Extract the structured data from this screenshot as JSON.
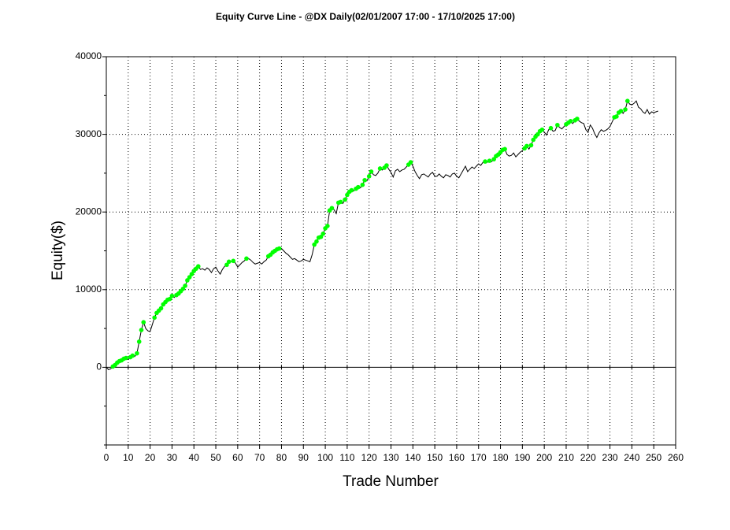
{
  "chart_data": {
    "type": "line",
    "title": "Equity Curve Line - @DX Daily(02/01/2007 17:00 - 17/10/2025 17:00)",
    "x_label": "Trade Number",
    "y_label": "Equity($)",
    "xlim": [
      0,
      260
    ],
    "xticks": [
      0,
      10,
      20,
      30,
      40,
      50,
      60,
      70,
      80,
      90,
      100,
      110,
      120,
      130,
      140,
      150,
      160,
      170,
      180,
      190,
      200,
      210,
      220,
      230,
      240,
      250,
      260
    ],
    "ylim": [
      -10000,
      40000
    ],
    "yticks": [
      0,
      10000,
      20000,
      30000,
      40000
    ],
    "yminor_ticks": [
      -10000,
      -5000,
      5000,
      15000,
      25000,
      35000
    ],
    "grid": true,
    "line_color": "#000000",
    "marker_color": "#00ff00",
    "series": [
      {
        "name": "Equity",
        "x": [
          0,
          1,
          2,
          3,
          4,
          5,
          6,
          7,
          8,
          9,
          10,
          11,
          12,
          13,
          14,
          15,
          16,
          17,
          18,
          19,
          20,
          21,
          22,
          23,
          24,
          25,
          26,
          27,
          28,
          29,
          30,
          31,
          32,
          33,
          34,
          35,
          36,
          37,
          38,
          39,
          40,
          41,
          42,
          43,
          44,
          45,
          46,
          47,
          48,
          49,
          50,
          51,
          52,
          53,
          54,
          55,
          56,
          57,
          58,
          59,
          60,
          61,
          62,
          63,
          64,
          65,
          66,
          67,
          68,
          69,
          70,
          71,
          72,
          73,
          74,
          75,
          76,
          77,
          78,
          79,
          80,
          81,
          82,
          83,
          84,
          85,
          86,
          87,
          88,
          89,
          90,
          91,
          92,
          93,
          94,
          95,
          96,
          97,
          98,
          99,
          100,
          101,
          102,
          103,
          104,
          105,
          106,
          107,
          108,
          109,
          110,
          111,
          112,
          113,
          114,
          115,
          116,
          117,
          118,
          119,
          120,
          121,
          122,
          123,
          124,
          125,
          126,
          127,
          128,
          129,
          130,
          131,
          132,
          133,
          134,
          135,
          136,
          137,
          138,
          139,
          140,
          141,
          142,
          143,
          144,
          145,
          146,
          147,
          148,
          149,
          150,
          151,
          152,
          153,
          154,
          155,
          156,
          157,
          158,
          159,
          160,
          161,
          162,
          163,
          164,
          165,
          166,
          167,
          168,
          169,
          170,
          171,
          172,
          173,
          174,
          175,
          176,
          177,
          178,
          179,
          180,
          181,
          182,
          183,
          184,
          185,
          186,
          187,
          188,
          189,
          190,
          191,
          192,
          193,
          194,
          195,
          196,
          197,
          198,
          199,
          200,
          201,
          202,
          203,
          204,
          205,
          206,
          207,
          208,
          209,
          210,
          211,
          212,
          213,
          214,
          215,
          216,
          217,
          218,
          219,
          220,
          221,
          222,
          223,
          224,
          225,
          226,
          227,
          228,
          229,
          230,
          231,
          232,
          233,
          234,
          235,
          236,
          237,
          238,
          239,
          240,
          241,
          242,
          243,
          244,
          245,
          246,
          247,
          248,
          249,
          250,
          251,
          252
        ],
        "values": [
          0,
          -300,
          -200,
          100,
          300,
          600,
          800,
          900,
          1100,
          1200,
          1000,
          1300,
          1500,
          1400,
          1800,
          3300,
          4800,
          5800,
          5000,
          4700,
          4600,
          5500,
          6400,
          7000,
          7300,
          7600,
          8100,
          8400,
          8700,
          8800,
          9200,
          9000,
          9300,
          9500,
          9800,
          10100,
          10500,
          11200,
          11600,
          12000,
          12400,
          12700,
          13000,
          12600,
          12700,
          12500,
          12800,
          12600,
          12200,
          12700,
          12900,
          12400,
          12000,
          12600,
          13000,
          13200,
          13600,
          13600,
          13700,
          13400,
          12900,
          13200,
          13500,
          13700,
          14000,
          14000,
          13800,
          13500,
          13300,
          13400,
          13500,
          13300,
          13600,
          13800,
          14300,
          14500,
          14800,
          15000,
          15200,
          15300,
          15300,
          15000,
          14700,
          14500,
          14200,
          13900,
          14000,
          13800,
          13600,
          13700,
          13900,
          13800,
          13700,
          13600,
          14500,
          15800,
          16200,
          16700,
          16800,
          17200,
          17900,
          18200,
          20200,
          20500,
          20300,
          19800,
          21200,
          21300,
          21100,
          21600,
          22200,
          22600,
          22800,
          22700,
          23000,
          23200,
          23100,
          23500,
          24100,
          24000,
          24600,
          25200,
          24800,
          24700,
          25000,
          25600,
          25400,
          25700,
          26000,
          25500,
          25100,
          24500,
          25300,
          25500,
          25200,
          25400,
          25500,
          25800,
          26100,
          26400,
          25900,
          25200,
          24700,
          24300,
          24800,
          24900,
          24700,
          24500,
          24900,
          25100,
          24600,
          24600,
          24900,
          24600,
          24400,
          24800,
          24700,
          24500,
          24900,
          25000,
          24600,
          24400,
          24900,
          25400,
          25900,
          25200,
          25500,
          25800,
          25600,
          25900,
          26200,
          26000,
          26400,
          26500,
          26400,
          26600,
          26500,
          26800,
          27200,
          27400,
          27700,
          28000,
          28100,
          27400,
          27200,
          27300,
          27600,
          27100,
          27400,
          27700,
          27900,
          28200,
          28500,
          28100,
          28600,
          29300,
          29700,
          30000,
          30400,
          30600,
          30300,
          29900,
          30600,
          30800,
          30400,
          30500,
          31200,
          30900,
          30700,
          31000,
          31300,
          31500,
          31700,
          31400,
          31800,
          32000,
          31700,
          31500,
          31400,
          30600,
          30300,
          31200,
          30800,
          30100,
          29600,
          30200,
          30600,
          30400,
          30500,
          30700,
          31000,
          31600,
          32200,
          32300,
          32800,
          33000,
          32700,
          33200,
          34300,
          33900,
          33800,
          34000,
          34300,
          33500,
          33300,
          32900,
          32700,
          33200,
          32600,
          32900,
          32800,
          32900,
          33000
        ]
      }
    ]
  }
}
